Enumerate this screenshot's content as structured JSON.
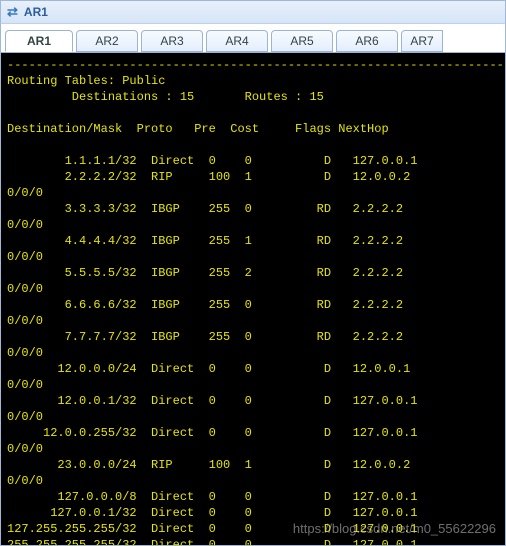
{
  "window": {
    "title": "AR1",
    "icon_name": "router-icon"
  },
  "tabs": {
    "items": [
      "AR1",
      "AR2",
      "AR3",
      "AR4",
      "AR5",
      "AR6",
      "AR7"
    ],
    "active_index": 0
  },
  "terminal": {
    "colors": {
      "background": "#000000",
      "text": "#e5e500"
    },
    "header": {
      "title_line": "Routing Tables: Public",
      "destinations_label": "Destinations :",
      "destinations_value": "15",
      "routes_label": "Routes :",
      "routes_value": "15"
    },
    "columns": [
      "Destination/Mask",
      "Proto",
      "Pre",
      "Cost",
      "Flags",
      "NextHop"
    ],
    "rows": [
      {
        "dest": "1.1.1.1/32",
        "proto": "Direct",
        "pre": "0",
        "cost": "0",
        "flags": "D",
        "nexthop": "127.0.0.1",
        "iface": null
      },
      {
        "dest": "2.2.2.2/32",
        "proto": "RIP",
        "pre": "100",
        "cost": "1",
        "flags": "D",
        "nexthop": "12.0.0.2",
        "iface": "0/0/0"
      },
      {
        "dest": "3.3.3.3/32",
        "proto": "IBGP",
        "pre": "255",
        "cost": "0",
        "flags": "RD",
        "nexthop": "2.2.2.2",
        "iface": "0/0/0"
      },
      {
        "dest": "4.4.4.4/32",
        "proto": "IBGP",
        "pre": "255",
        "cost": "1",
        "flags": "RD",
        "nexthop": "2.2.2.2",
        "iface": "0/0/0"
      },
      {
        "dest": "5.5.5.5/32",
        "proto": "IBGP",
        "pre": "255",
        "cost": "2",
        "flags": "RD",
        "nexthop": "2.2.2.2",
        "iface": "0/0/0"
      },
      {
        "dest": "6.6.6.6/32",
        "proto": "IBGP",
        "pre": "255",
        "cost": "0",
        "flags": "RD",
        "nexthop": "2.2.2.2",
        "iface": "0/0/0"
      },
      {
        "dest": "7.7.7.7/32",
        "proto": "IBGP",
        "pre": "255",
        "cost": "0",
        "flags": "RD",
        "nexthop": "2.2.2.2",
        "iface": "0/0/0"
      },
      {
        "dest": "12.0.0.0/24",
        "proto": "Direct",
        "pre": "0",
        "cost": "0",
        "flags": "D",
        "nexthop": "12.0.0.1",
        "iface": "0/0/0"
      },
      {
        "dest": "12.0.0.1/32",
        "proto": "Direct",
        "pre": "0",
        "cost": "0",
        "flags": "D",
        "nexthop": "127.0.0.1",
        "iface": "0/0/0"
      },
      {
        "dest": "12.0.0.255/32",
        "proto": "Direct",
        "pre": "0",
        "cost": "0",
        "flags": "D",
        "nexthop": "127.0.0.1",
        "iface": "0/0/0"
      },
      {
        "dest": "23.0.0.0/24",
        "proto": "RIP",
        "pre": "100",
        "cost": "1",
        "flags": "D",
        "nexthop": "12.0.0.2",
        "iface": "0/0/0"
      },
      {
        "dest": "127.0.0.0/8",
        "proto": "Direct",
        "pre": "0",
        "cost": "0",
        "flags": "D",
        "nexthop": "127.0.0.1",
        "iface": null
      },
      {
        "dest": "127.0.0.1/32",
        "proto": "Direct",
        "pre": "0",
        "cost": "0",
        "flags": "D",
        "nexthop": "127.0.0.1",
        "iface": null
      },
      {
        "dest": "127.255.255.255/32",
        "proto": "Direct",
        "pre": "0",
        "cost": "0",
        "flags": "D",
        "nexthop": "127.0.0.1",
        "iface": null
      },
      {
        "dest": "255.255.255.255/32",
        "proto": "Direct",
        "pre": "0",
        "cost": "0",
        "flags": "D",
        "nexthop": "127.0.0.1",
        "iface": null
      }
    ],
    "col_widths": {
      "dest": 18,
      "proto": 8,
      "pre": 5,
      "cost": 9,
      "flags": 6,
      "nexthop": 10
    },
    "dest_col_total": 18
  },
  "watermark": "https://blog.csdn.net/m0_55622296"
}
